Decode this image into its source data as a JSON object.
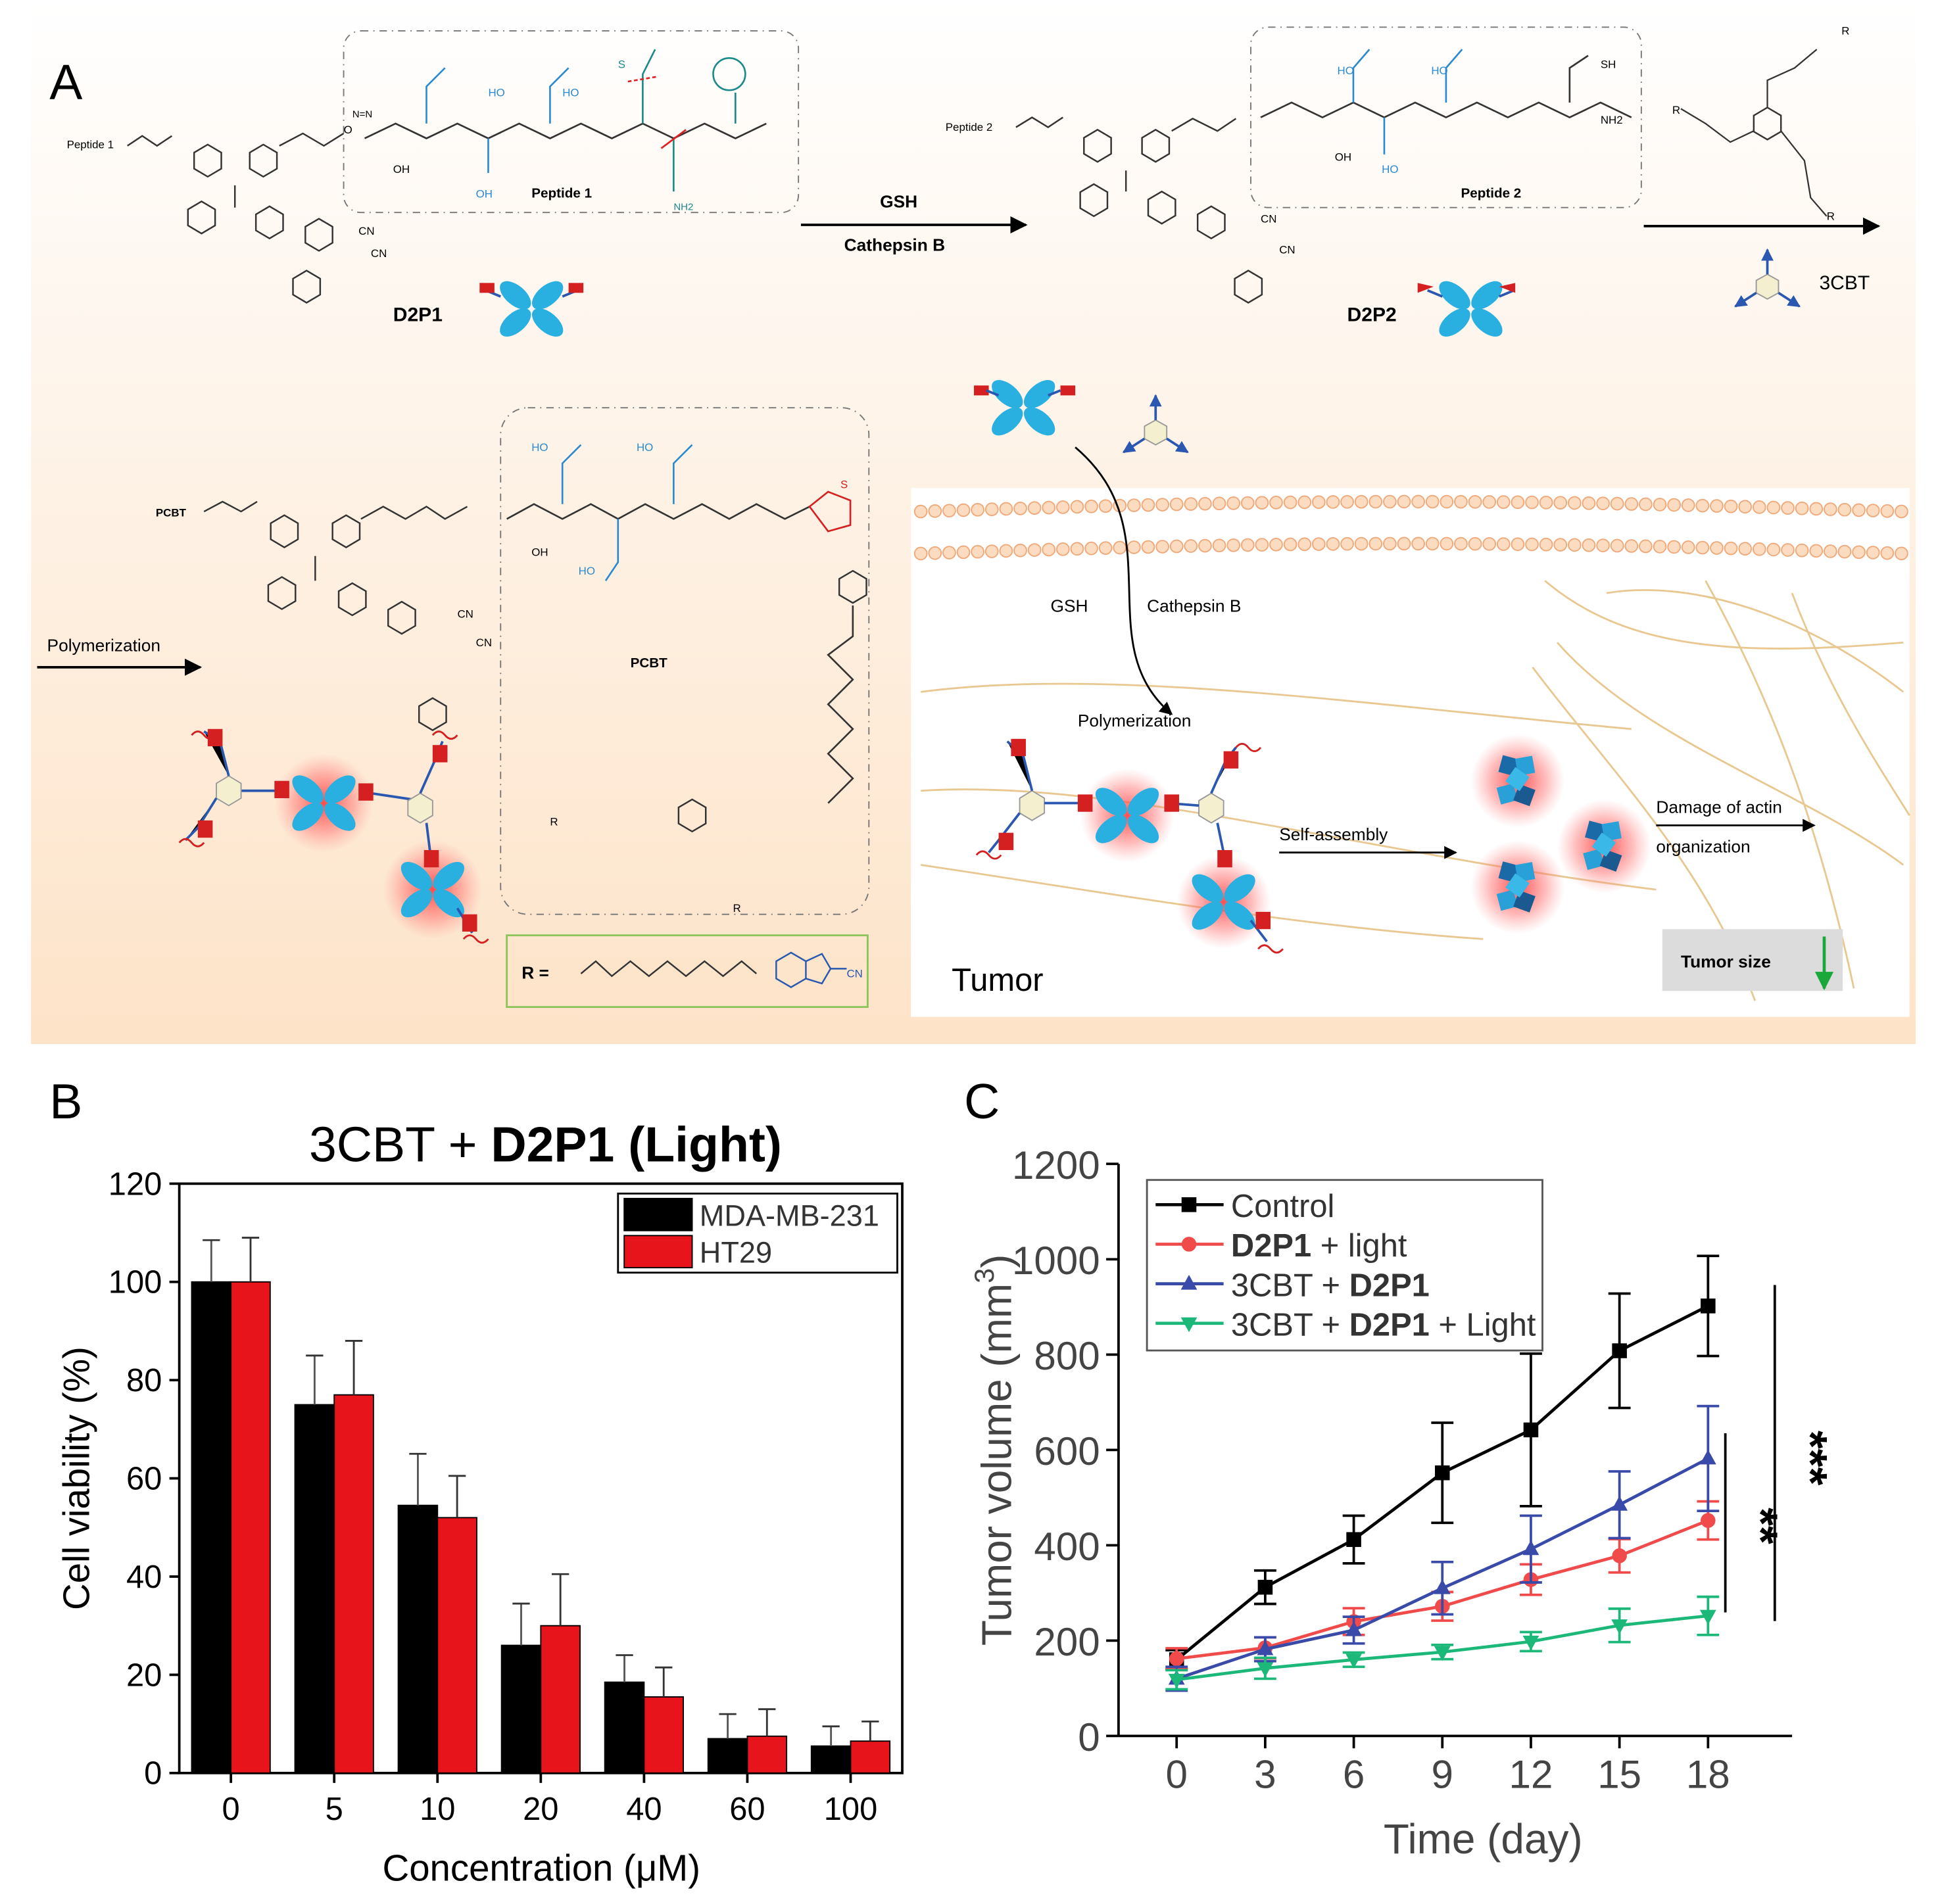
{
  "panel_a": {
    "letter": "A",
    "d2p1_label": "D2P1",
    "d2p2_label": "D2P2",
    "peptide1_label": "Peptide 1",
    "peptide2_label": "Peptide 2",
    "peptide1_prefix": "Peptide 1",
    "peptide2_prefix": "Peptide 2",
    "arrow1_top": "GSH",
    "arrow1_bottom": "Cathepsin B",
    "cbt_label": "3CBT",
    "pcbt_prefix": "PCBT",
    "pcbt_label": "PCBT",
    "polymerization_left": "Polymerization",
    "r_def": "R =",
    "gsh": "GSH",
    "cathepsin": "Cathepsin B",
    "polymerization_cell": "Polymerization",
    "self_assembly": "Self-assembly",
    "damage_line1": "Damage of actin",
    "damage_line2": "organization",
    "tumor": "Tumor",
    "tumor_size": "Tumor size",
    "atoms": {
      "cn": "CN",
      "o": "O",
      "oh": "OH",
      "ho": "HO",
      "n": "N",
      "h": "H",
      "s": "S",
      "sh": "SH",
      "nh2": "NH2",
      "n3": "N=N",
      "r": "R"
    }
  },
  "panel_b": {
    "letter": "B",
    "title_plain": "3CBT + ",
    "title_bold": "D2P1 (Light)",
    "chart_data": {
      "type": "bar",
      "categories": [
        "0",
        "5",
        "10",
        "20",
        "40",
        "60",
        "100"
      ],
      "series": [
        {
          "name": "MDA-MB-231",
          "color": "#000000",
          "values": [
            100,
            75,
            54.5,
            26,
            18.5,
            7,
            5.5
          ],
          "errors": [
            8.5,
            10,
            10.5,
            8.5,
            5.5,
            5,
            4
          ]
        },
        {
          "name": "HT29",
          "color": "#e8141b",
          "values": [
            100,
            77,
            52,
            30,
            15.5,
            7.5,
            6.5
          ],
          "errors": [
            9,
            11,
            8.5,
            10.5,
            6,
            5.5,
            4
          ]
        }
      ],
      "xlabel": "Concentration (μM)",
      "ylabel": "Cell viability (%)",
      "ylim": [
        0,
        120
      ],
      "yticks": [
        "0",
        "20",
        "40",
        "60",
        "80",
        "100",
        "120"
      ],
      "legend": "top-right",
      "grid": false
    }
  },
  "panel_c": {
    "letter": "C",
    "chart_data": {
      "type": "line",
      "x": [
        0,
        3,
        6,
        9,
        12,
        15,
        18
      ],
      "xticks": [
        "0",
        "3",
        "6",
        "9",
        "12",
        "15",
        "18"
      ],
      "series": [
        {
          "name_plain": "Control",
          "name_bold": "",
          "name_tail": "",
          "color": "#000000",
          "marker": "square",
          "values": [
            160,
            312,
            412,
            552,
            642,
            808,
            902
          ],
          "errors": [
            20,
            35,
            50,
            105,
            160,
            120,
            105
          ]
        },
        {
          "name_plain": "",
          "name_bold": "D2P1",
          "name_tail": " + light",
          "color": "#f04a4a",
          "marker": "circle",
          "values": [
            162,
            185,
            240,
            272,
            328,
            378,
            452
          ],
          "errors": [
            22,
            22,
            28,
            30,
            32,
            35,
            40
          ]
        },
        {
          "name_plain": "3CBT + ",
          "name_bold": "D2P1",
          "name_tail": "",
          "color": "#3a4aa8",
          "marker": "triangle-up",
          "values": [
            120,
            182,
            222,
            310,
            392,
            485,
            582
          ],
          "errors": [
            25,
            25,
            28,
            55,
            70,
            70,
            110
          ]
        },
        {
          "name_plain": "3CBT + ",
          "name_bold": "D2P1",
          "name_tail": " + Light",
          "color": "#1bb87a",
          "marker": "triangle-down",
          "values": [
            118,
            142,
            160,
            176,
            198,
            232,
            252
          ],
          "errors": [
            20,
            22,
            15,
            15,
            20,
            35,
            40
          ]
        }
      ],
      "xlabel": "Time (day)",
      "ylabel": "Tumor volume (mm",
      "ylabel_sup": "3",
      "ylabel_end": ")",
      "ylim": [
        0,
        1200
      ],
      "yticks": [
        "0",
        "200",
        "400",
        "600",
        "800",
        "1000",
        "1200"
      ],
      "legend": "top-left",
      "grid": false,
      "significance": [
        "**",
        "***"
      ]
    }
  }
}
